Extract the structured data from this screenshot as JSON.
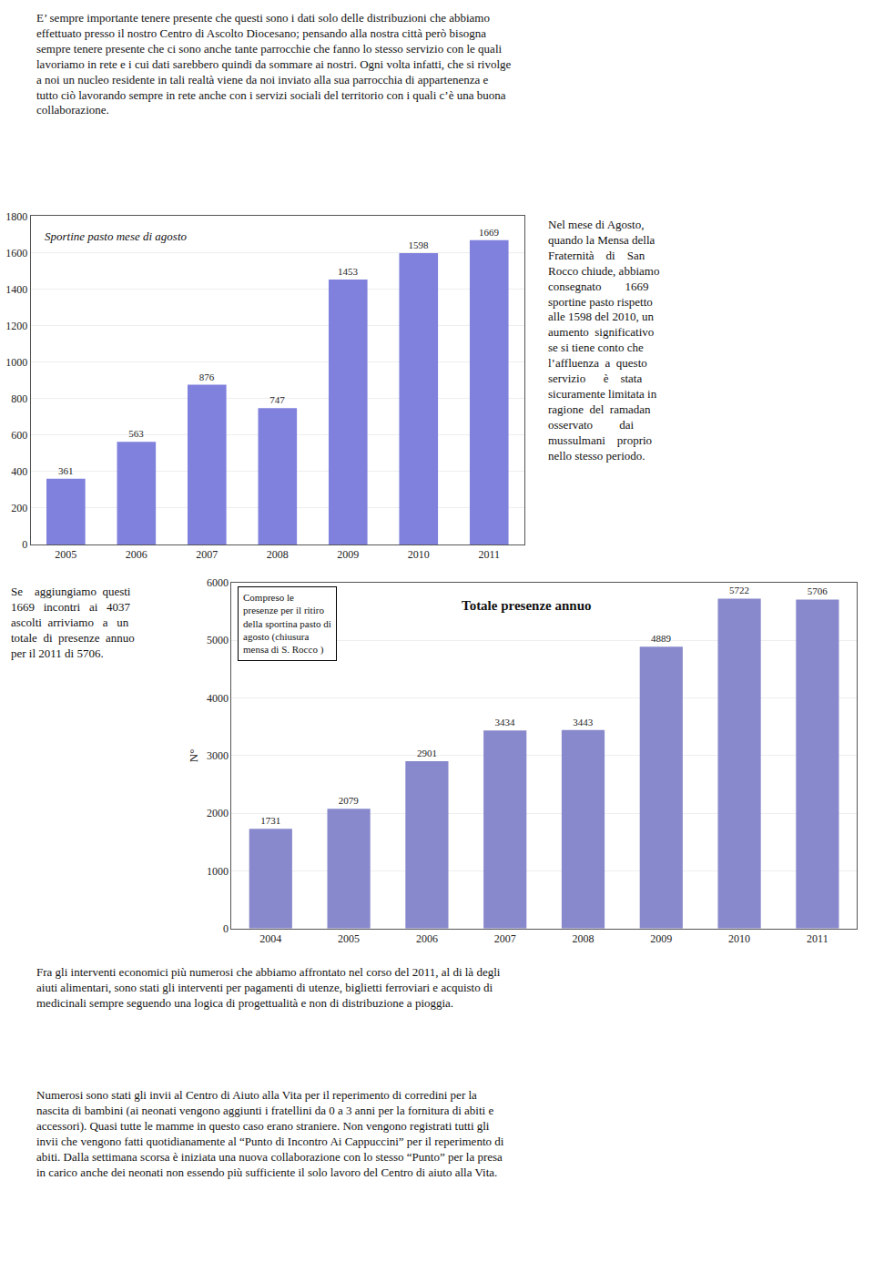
{
  "chart_data": [
    {
      "type": "bar",
      "title": "Sportine pasto mese di agosto",
      "categories": [
        "2005",
        "2006",
        "2007",
        "2008",
        "2009",
        "2010",
        "2011"
      ],
      "values": [
        361,
        563,
        876,
        747,
        1453,
        1598,
        1669
      ],
      "color": "#8080dd",
      "ylim": [
        0,
        1800
      ],
      "yticks": [
        0,
        200,
        400,
        600,
        800,
        1000,
        1200,
        1400,
        1600,
        1800
      ],
      "grid": true,
      "data_labels": true,
      "annotations": [
        "E’ sempre importante tenere presente che questi sono i dati solo delle distribuzioni che abbiamo\neffettuato presso il nostro Centro di Ascolto Diocesano; pensando alla nostra città però bisogna\nsempre tenere presente che ci sono anche tante parrocchie che fanno lo stesso servizio con le quali\nlavoriamo in rete e i cui dati sarebbero quindi da sommare ai nostri. Ogni volta infatti, che si rivolge\na noi un nucleo residente in tali realtà viene da noi inviato alla sua parrocchia di appartenenza e\ntutto ciò lavorando sempre in rete anche con i servizi sociali del territorio con i quali c’è una buona\ncollaborazione.",
        "Nel mese di Agosto,\nquando la Mensa della\nFraternità    di    San\nRocco chiude, abbiamo\nconsegnato        1669\nsportine pasto rispetto\nalle 1598 del 2010, un\naumento  significativo\nse si tiene conto che\nl’affluenza  a  questo\nservizio      è    stata\nsicuramente limitata in\nragione  del  ramadan\nosservato         dai\nmussulmani    proprio\nnello stesso periodo."
      ]
    },
    {
      "type": "bar",
      "title": "Totale presenze annuo",
      "ylabel": "N°",
      "categories": [
        "2004",
        "2005",
        "2006",
        "2007",
        "2008",
        "2009",
        "2010",
        "2011"
      ],
      "values": [
        1731,
        2079,
        2901,
        3434,
        3443,
        4889,
        5722,
        5706
      ],
      "color": "#8888cc",
      "ylim": [
        0,
        6000
      ],
      "yticks": [
        0,
        1000,
        2000,
        3000,
        4000,
        5000,
        6000
      ],
      "grid": true,
      "data_labels": true,
      "annotations": [
        "Se    aggiungiamo  questi\n1669   incontri   ai   4037\nascolti  arriviamo   a   un\ntotale  di  presenze  annuo\nper il 2011 di 5706.",
        "Compreso le\npresenze per il ritiro\ndella sportina pasto di\nagosto (chiusura\nmensa di S. Rocco )",
        "Fra gli interventi economici più numerosi che abbiamo affrontato nel corso del 2011, al di là degli\naiuti alimentari, sono stati gli interventi per pagamenti di utenze, biglietti ferroviari e acquisto di\nmedicinali sempre seguendo una logica di progettualità e non di distribuzione a pioggia.",
        "Numerosi sono stati gli invii al Centro di Aiuto alla Vita per il reperimento di corredini per la\nnascita di bambini (ai neonati vengono aggiunti i fratellini da 0 a 3 anni per la fornitura di abiti e\naccessori). Quasi tutte le mamme in questo caso erano straniere. Non vengono registrati tutti gli\ninvii che vengono fatti quotidianamente al “Punto di Incontro Ai Cappuccini” per il reperimento di\nabiti. Dalla settimana scorsa è iniziata una nuova collaborazione con lo stesso “Punto” per la presa\nin carico anche dei neonati non essendo più sufficiente il solo lavoro del Centro di aiuto alla Vita."
      ]
    }
  ]
}
